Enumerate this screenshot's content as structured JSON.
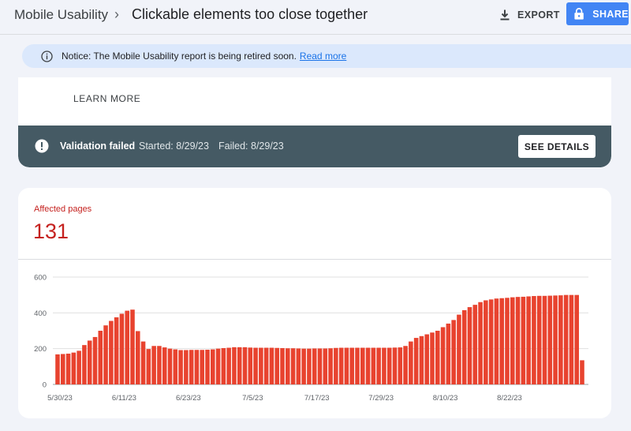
{
  "header": {
    "breadcrumb_root": "Mobile Usability",
    "breadcrumb_separator": "›",
    "title": "Clickable elements too close together",
    "export_label": "EXPORT",
    "share_label": "SHARE"
  },
  "notice": {
    "text": "Notice: The Mobile Usability report is being retired soon.",
    "link": "Read more"
  },
  "card": {
    "learn_more": "LEARN MORE"
  },
  "validation": {
    "status": "Validation failed",
    "started": "Started: 8/29/23",
    "failed": "Failed: 8/29/23",
    "button": "SEE DETAILS"
  },
  "affected": {
    "label": "Affected pages",
    "count": "131"
  },
  "colors": {
    "accent": "#4285f4",
    "error": "#c5221f",
    "bar": "#e8432f",
    "validation_bar": "#455a64",
    "notice_bg": "#dbe8fc"
  },
  "chart_data": {
    "type": "bar",
    "title": "",
    "xlabel": "",
    "ylabel": "",
    "ylim": [
      0,
      600
    ],
    "yticks": [
      0,
      200,
      400,
      600
    ],
    "grid": true,
    "xtick_labels": [
      "5/30/23",
      "6/11/23",
      "6/23/23",
      "7/5/23",
      "7/17/23",
      "7/29/23",
      "8/10/23",
      "8/22/23"
    ],
    "x_start": "5/30/23",
    "series": [
      {
        "values": [
          168,
          170,
          172,
          178,
          188,
          220,
          245,
          265,
          300,
          330,
          355,
          375,
          395,
          412,
          418,
          298,
          240,
          198,
          215,
          215,
          207,
          200,
          196,
          192,
          192,
          193,
          193,
          193,
          194,
          196,
          200,
          203,
          205,
          208,
          208,
          208,
          206,
          205,
          205,
          205,
          205,
          204,
          203,
          202,
          202,
          201,
          200,
          200,
          201,
          201,
          201,
          202,
          204,
          205,
          205,
          205,
          205,
          205,
          205,
          205,
          205,
          205,
          205,
          206,
          207,
          215,
          240,
          260,
          270,
          280,
          290,
          300,
          320,
          340,
          360,
          390,
          415,
          432,
          445,
          460,
          470,
          475,
          480,
          482,
          484,
          487,
          489,
          490,
          492,
          494,
          495,
          495,
          496,
          497,
          498,
          500,
          500,
          500,
          135
        ]
      }
    ]
  }
}
